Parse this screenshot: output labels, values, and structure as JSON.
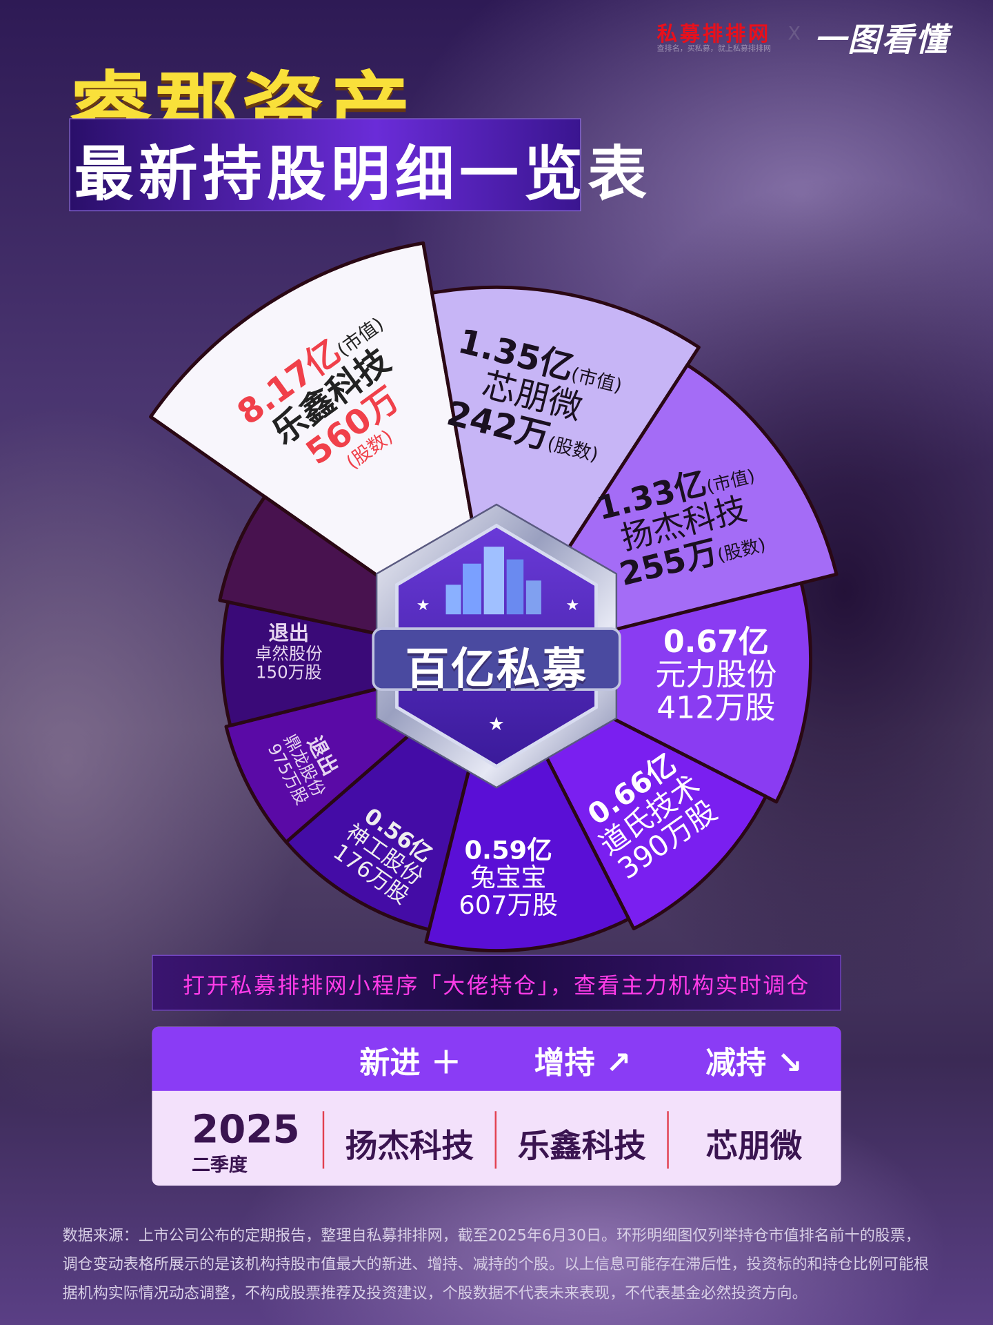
{
  "brand": {
    "name": "私募排排网",
    "slogan": "查排名，买私募，就上私募排排网",
    "x": "X",
    "partner": "一图看懂"
  },
  "title": {
    "line1": "睿郡资产",
    "line2": "最新持股明细一览表"
  },
  "badge": {
    "text": "百亿私募",
    "icon": "city-buildings-icon"
  },
  "holdings": [
    {
      "value": "8.17亿",
      "value_note": "(市值)",
      "name": "乐鑫科技",
      "shares": "560万",
      "shares_note": "(股数)",
      "color": "#f8f6fc"
    },
    {
      "value": "1.35亿",
      "value_note": "(市值)",
      "name": "芯朋微",
      "shares": "242万",
      "shares_note": "(股数)",
      "color": "#c7b5f6"
    },
    {
      "value": "1.33亿",
      "value_note": "(市值)",
      "name": "扬杰科技",
      "shares": "255万",
      "shares_note": "(股数)",
      "color": "#a46cf6"
    },
    {
      "value": "0.67亿",
      "name": "元力股份",
      "shares": "412万股",
      "color": "#8a3cf2"
    },
    {
      "value": "0.66亿",
      "name": "道氏技术",
      "shares": "390万股",
      "color": "#7a1ff0"
    },
    {
      "value": "0.59亿",
      "name": "兔宝宝",
      "shares": "607万股",
      "color": "#5a0fd6"
    },
    {
      "value": "0.56亿",
      "name": "神工股份",
      "shares": "176万股",
      "color": "#440ca6"
    },
    {
      "status": "退出",
      "name": "鼎龙股份",
      "shares": "975万股",
      "color": "#5a0aa6"
    },
    {
      "status": "退出",
      "name": "卓然股份",
      "shares": "150万股",
      "color": "#3a0a78"
    },
    {
      "color": "#48124f"
    }
  ],
  "promo": "打开私募排排网小程序「大佬持仓」，查看主力机构实时调仓",
  "changes": {
    "headers": {
      "new": "新进",
      "increase": "增持",
      "decrease": "减持"
    },
    "year": "2025",
    "quarter": "二季度",
    "new": "扬杰科技",
    "increase": "乐鑫科技",
    "decrease": "芯朋微"
  },
  "footer": "数据来源：上市公司公布的定期报告，整理自私募排排网，截至2025年6月30日。环形明细图仅列举持仓市值排名前十的股票，调仓变动表格所展示的是该机构持股市值最大的新进、增持、减持的个股。以上信息可能存在滞后性，投资标的和持仓比例可能根据机构实际情况动态调整，不构成股票推荐及投资建议，个股数据不代表未来表现，不代表基金必然投资方向。"
}
